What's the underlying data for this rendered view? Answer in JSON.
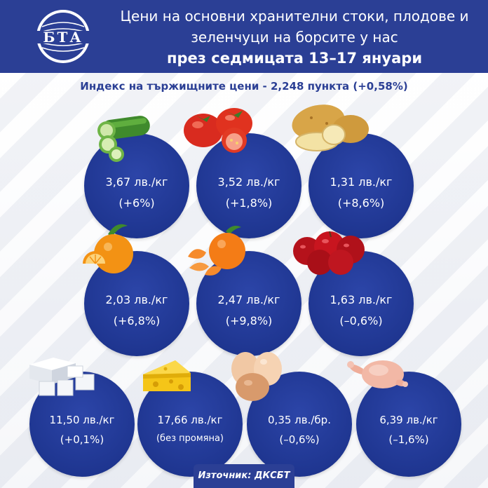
{
  "header": {
    "logo_text": "БТА",
    "title_line1": "Цени на основни хранителни стоки, плодове и",
    "title_line2": "зеленчуци на борсите у нас",
    "title_line3": "през седмицата 13–17 януари"
  },
  "subtitle": "Индекс на тържищните цени - 2,248 пункта (+0,58%)",
  "items": [
    {
      "product_icon": "cucumber-icon",
      "price": "3,67 лв./кг",
      "change": "(+6%)"
    },
    {
      "product_icon": "tomato-icon",
      "price": "3,52 лв./кг",
      "change": "(+1,8%)"
    },
    {
      "product_icon": "potato-icon",
      "price": "1,31 лв./кг",
      "change": "(+8,6%)"
    },
    {
      "product_icon": "orange-icon",
      "price": "2,03 лв./кг",
      "change": "(+6,8%)"
    },
    {
      "product_icon": "tangerine-icon",
      "price": "2,47 лв./кг",
      "change": "(+9,8%)"
    },
    {
      "product_icon": "apple-icon",
      "price": "1,63 лв./кг",
      "change": "(–0,6%)"
    },
    {
      "product_icon": "white-cheese-icon",
      "price": "11,50 лв./кг",
      "change": "(+0,1%)"
    },
    {
      "product_icon": "yellow-cheese-icon",
      "price": "17,66 лв./кг",
      "change": "(без промяна)"
    },
    {
      "product_icon": "eggs-icon",
      "price": "0,35 лв./бр.",
      "change": "(–0,6%)"
    },
    {
      "product_icon": "chicken-icon",
      "price": "6,39 лв./кг",
      "change": "(–1,6%)"
    }
  ],
  "source": "Източник: ДКСБТ",
  "colors": {
    "brand_blue": "#2b3f95",
    "circle_blue": "#1f3691",
    "background": "#eef0f5"
  }
}
